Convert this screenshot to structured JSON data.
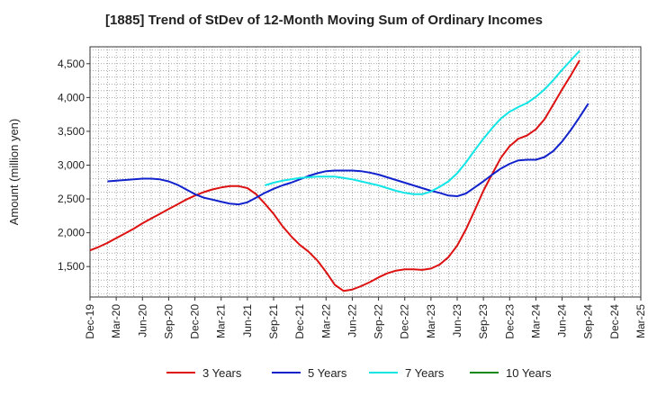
{
  "chart_data": {
    "type": "line",
    "title": "[1885]  Trend of StDev of 12-Month Moving Sum of Ordinary Incomes",
    "xlabel": "",
    "ylabel": "Amount (million yen)",
    "ylim": [
      1050,
      4750
    ],
    "yticks": [
      1500,
      2000,
      2500,
      3000,
      3500,
      4000,
      4500
    ],
    "ytick_labels": [
      "1,500",
      "2,000",
      "2,500",
      "3,000",
      "3,500",
      "4,000",
      "4,500"
    ],
    "xticks": [
      "Dec-19",
      "Mar-20",
      "Jun-20",
      "Sep-20",
      "Dec-20",
      "Mar-21",
      "Jun-21",
      "Sep-21",
      "Dec-21",
      "Mar-22",
      "Jun-22",
      "Sep-22",
      "Dec-22",
      "Mar-23",
      "Jun-23",
      "Sep-23",
      "Dec-23",
      "Mar-24",
      "Jun-24",
      "Sep-24",
      "Dec-24",
      "Mar-25"
    ],
    "grid": true,
    "series": [
      {
        "name": "3 Years",
        "color": "#dd1111",
        "start_index": 0,
        "values": [
          1740,
          1790,
          1850,
          1920,
          1990,
          2060,
          2140,
          2210,
          2280,
          2350,
          2420,
          2490,
          2550,
          2600,
          2640,
          2670,
          2690,
          2690,
          2660,
          2570,
          2430,
          2280,
          2100,
          1950,
          1820,
          1720,
          1590,
          1420,
          1230,
          1140,
          1160,
          1210,
          1270,
          1340,
          1400,
          1440,
          1460,
          1460,
          1450,
          1470,
          1530,
          1640,
          1810,
          2050,
          2330,
          2620,
          2870,
          3110,
          3280,
          3390,
          3440,
          3530,
          3680,
          3900,
          4120,
          4330,
          4550
        ]
      },
      {
        "name": "5 Years",
        "color": "#1122cc",
        "start_index": 2,
        "values": [
          2760,
          2770,
          2780,
          2790,
          2800,
          2800,
          2790,
          2760,
          2710,
          2640,
          2570,
          2520,
          2490,
          2460,
          2430,
          2420,
          2450,
          2520,
          2590,
          2650,
          2700,
          2740,
          2790,
          2840,
          2880,
          2910,
          2920,
          2920,
          2920,
          2910,
          2890,
          2860,
          2820,
          2780,
          2740,
          2700,
          2660,
          2620,
          2590,
          2550,
          2540,
          2580,
          2670,
          2760,
          2860,
          2950,
          3020,
          3070,
          3080,
          3080,
          3120,
          3210,
          3350,
          3520,
          3710,
          3910
        ]
      },
      {
        "name": "7 Years",
        "color": "#11e5e5",
        "start_index": 20,
        "values": [
          2700,
          2740,
          2770,
          2790,
          2810,
          2820,
          2830,
          2830,
          2830,
          2810,
          2790,
          2760,
          2730,
          2700,
          2660,
          2620,
          2590,
          2570,
          2570,
          2610,
          2680,
          2760,
          2880,
          3040,
          3220,
          3390,
          3550,
          3690,
          3790,
          3860,
          3920,
          4010,
          4120,
          4260,
          4410,
          4550,
          4690
        ]
      },
      {
        "name": "10 Years",
        "color": "#118811",
        "start_index": 0,
        "values": []
      }
    ]
  }
}
